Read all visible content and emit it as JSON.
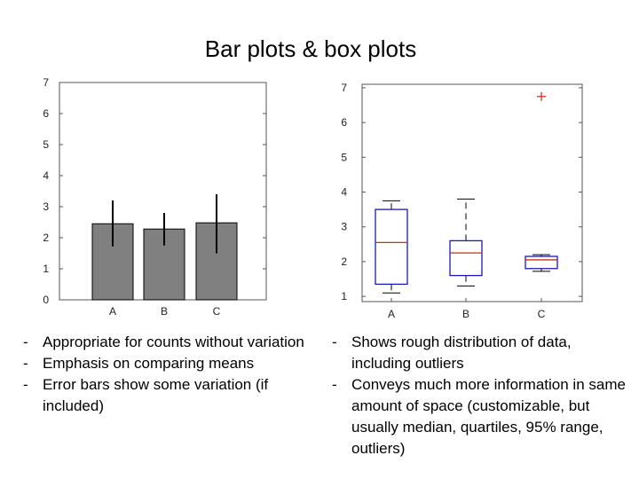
{
  "slide": {
    "title": "Bar plots & box plots"
  },
  "chart_data": [
    {
      "type": "bar",
      "categories": [
        "A",
        "B",
        "C"
      ],
      "values": [
        2.45,
        2.28,
        2.48
      ],
      "error_bars": [
        [
          1.72,
          3.2
        ],
        [
          1.75,
          2.8
        ],
        [
          1.5,
          3.4
        ]
      ],
      "ylim": [
        0,
        7
      ],
      "yticks": [
        0,
        1,
        2,
        3,
        4,
        5,
        6,
        7
      ],
      "grid": false,
      "bar_color": "#808080"
    },
    {
      "type": "box",
      "categories": [
        "A",
        "B",
        "C"
      ],
      "boxes": [
        {
          "category": "A",
          "whisker_low": 1.1,
          "q1": 1.35,
          "median": 2.55,
          "q3": 3.5,
          "whisker_high": 3.75,
          "outliers": []
        },
        {
          "category": "B",
          "whisker_low": 1.3,
          "q1": 1.6,
          "median": 2.25,
          "q3": 2.6,
          "whisker_high": 3.8,
          "outliers": []
        },
        {
          "category": "C",
          "whisker_low": 1.72,
          "q1": 1.8,
          "median": 2.05,
          "q3": 2.15,
          "whisker_high": 2.2,
          "outliers": [
            6.75
          ]
        }
      ],
      "ylim": [
        0.85,
        7.1
      ],
      "yticks": [
        1,
        2,
        3,
        4,
        5,
        6,
        7
      ],
      "grid": false,
      "box_color": "#1a1ab4",
      "median_color": "#c03020",
      "whisker_color": "#000000",
      "outlier_color": "#d03020"
    }
  ],
  "bullets_left": [
    "Appropriate for counts without variation",
    "Emphasis on comparing means",
    "Error bars show some variation (if included)"
  ],
  "bullets_right": [
    "Shows rough distribution of data, including outliers",
    "Conveys much more information in same amount of space (customizable, but usually median, quartiles, 95% range, outliers)"
  ],
  "bullet_marker": "-"
}
